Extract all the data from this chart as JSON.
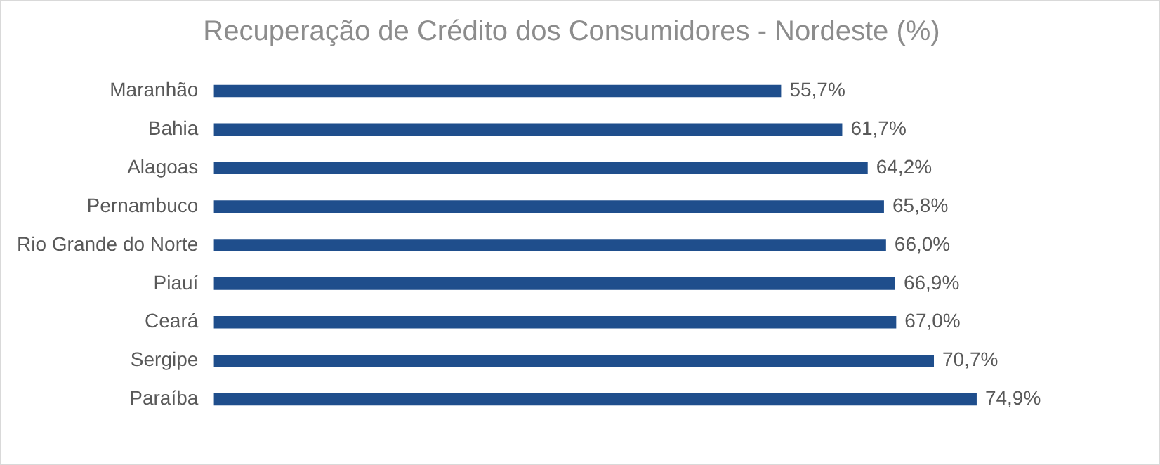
{
  "chart_data": {
    "type": "bar",
    "orientation": "horizontal",
    "title": "Recuperação de Crédito dos Consumidores - Nordeste (%)",
    "categories": [
      "Maranhão",
      "Bahia",
      "Alagoas",
      "Pernambuco",
      "Rio Grande do Norte",
      "Piauí",
      "Ceará",
      "Sergipe",
      "Paraíba"
    ],
    "values": [
      55.7,
      61.7,
      64.2,
      65.8,
      66.0,
      66.9,
      67.0,
      70.7,
      74.9
    ],
    "value_labels": [
      "55,7%",
      "61,7%",
      "64,2%",
      "65,8%",
      "66,0%",
      "66,9%",
      "67,0%",
      "70,7%",
      "74,9%"
    ],
    "color": "#1f4e8c"
  }
}
